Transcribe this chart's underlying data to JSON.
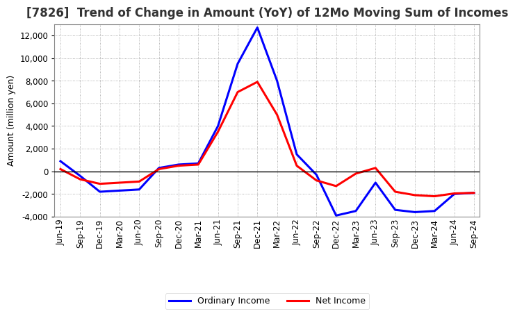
{
  "title": "[7826]  Trend of Change in Amount (YoY) of 12Mo Moving Sum of Incomes",
  "ylabel": "Amount (million yen)",
  "x_labels": [
    "Jun-19",
    "Sep-19",
    "Dec-19",
    "Mar-20",
    "Jun-20",
    "Sep-20",
    "Dec-20",
    "Mar-21",
    "Jun-21",
    "Sep-21",
    "Dec-21",
    "Mar-22",
    "Jun-22",
    "Sep-22",
    "Dec-22",
    "Mar-23",
    "Jun-23",
    "Sep-23",
    "Dec-23",
    "Mar-24",
    "Jun-24",
    "Sep-24"
  ],
  "ordinary_income": [
    900,
    -400,
    -1800,
    -1700,
    -1600,
    300,
    600,
    700,
    4000,
    9500,
    12700,
    8000,
    1500,
    -300,
    -3900,
    -3500,
    -1000,
    -3400,
    -3600,
    -3500,
    -2000,
    -1900
  ],
  "net_income": [
    200,
    -700,
    -1100,
    -1000,
    -900,
    200,
    500,
    600,
    3500,
    7000,
    7900,
    5000,
    500,
    -800,
    -1300,
    -200,
    300,
    -1800,
    -2100,
    -2200,
    -1950,
    -1900
  ],
  "ordinary_color": "#0000ff",
  "net_color": "#ff0000",
  "ylim": [
    -4000,
    13000
  ],
  "yticks": [
    -4000,
    -2000,
    0,
    2000,
    4000,
    6000,
    8000,
    10000,
    12000
  ],
  "grid_color": "#999999",
  "bg_color": "#ffffff",
  "plot_bg_color": "#ffffff",
  "legend_ordinary": "Ordinary Income",
  "legend_net": "Net Income",
  "line_width": 2.2,
  "title_fontsize": 12,
  "axis_fontsize": 9,
  "tick_fontsize": 8.5
}
